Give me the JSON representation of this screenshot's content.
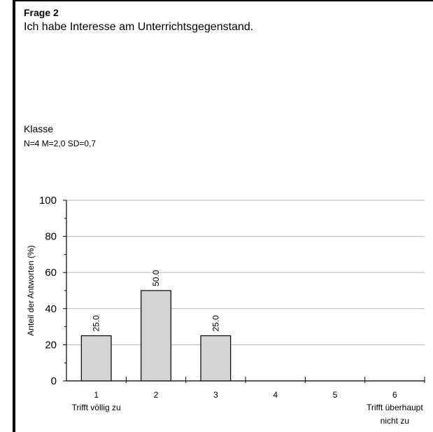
{
  "header": {
    "question_title": "Frage 2",
    "question_text": "Ich habe Interesse am Unterrichtsgegenstand.",
    "group_label": "Klasse",
    "stats": "N=4 M=2,0 SD=0,7"
  },
  "chart_data": {
    "type": "bar",
    "ylabel": "Anteil der Antworten (%)",
    "ylim": [
      0,
      100
    ],
    "yticks": [
      0,
      20,
      40,
      60,
      80,
      100
    ],
    "categories": [
      "1",
      "2",
      "3",
      "4",
      "5",
      "6"
    ],
    "category_sublabels": [
      "Trifft völlig zu",
      "",
      "",
      "",
      "",
      "Trifft überhaupt nicht zu"
    ],
    "values": [
      25.0,
      50.0,
      25.0,
      0,
      0,
      0
    ],
    "value_labels": [
      "25.0",
      "50.0",
      "25.0",
      "",
      "",
      ""
    ],
    "grid": true,
    "bar_color": "#d4d4d4",
    "bar_edge_color": "#000000"
  }
}
